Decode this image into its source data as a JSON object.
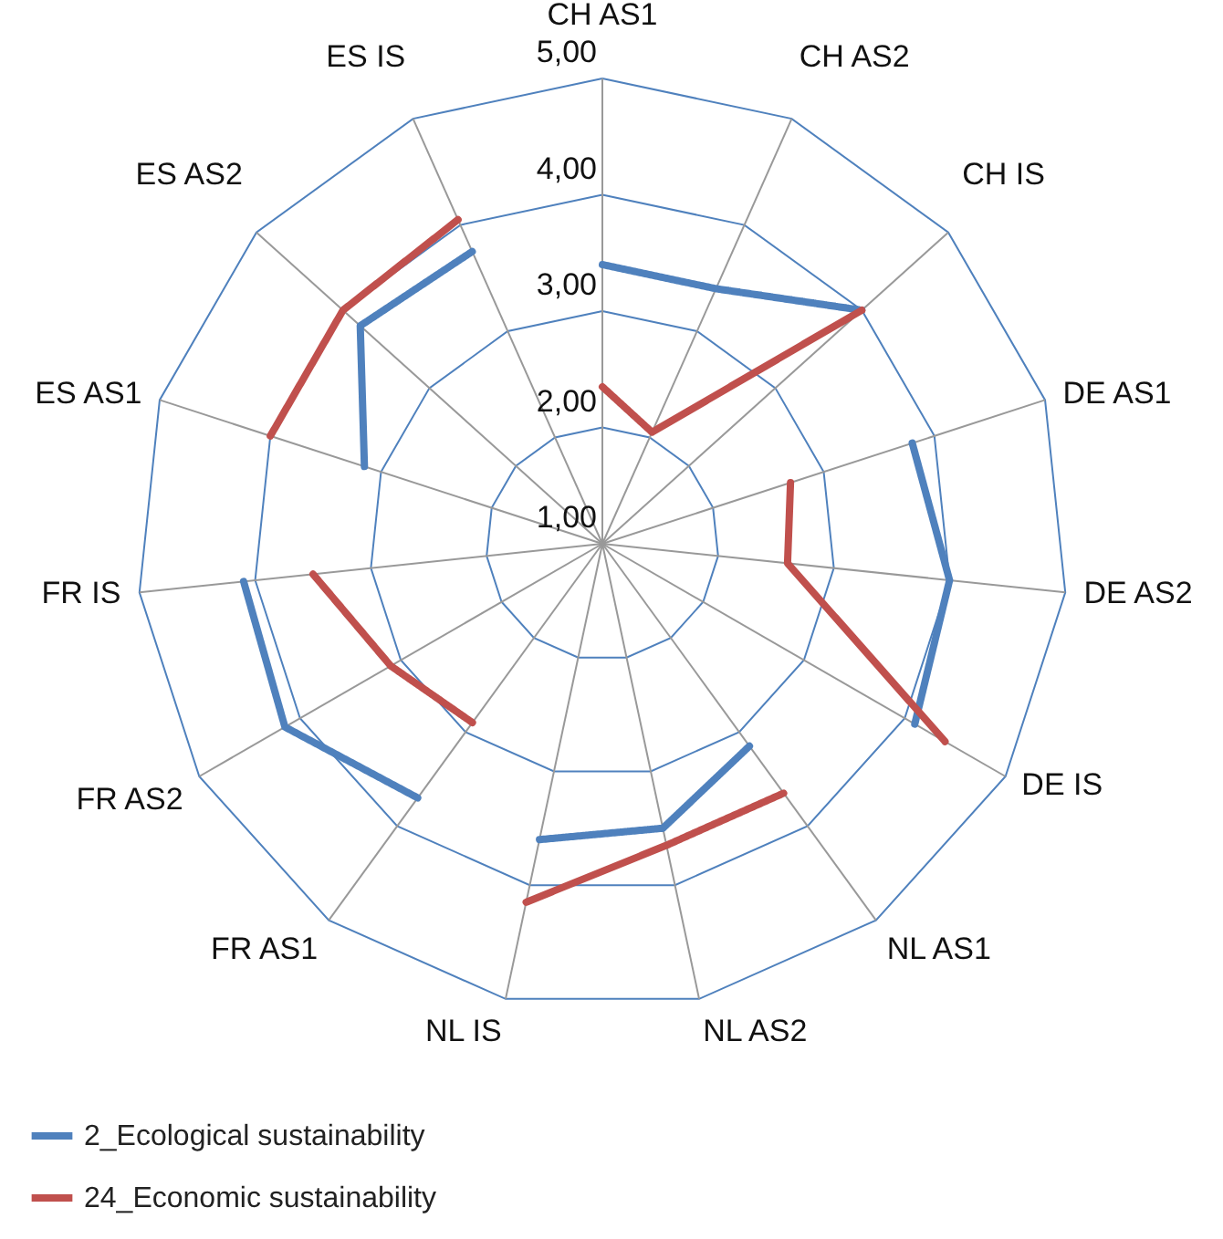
{
  "chart_data": {
    "type": "radar",
    "categories": [
      "CH AS1",
      "CH AS2",
      "CH IS",
      "DE AS1",
      "DE AS2",
      "DE IS",
      "NL AS1",
      "NL AS2",
      "NL IS",
      "FR AS1",
      "FR AS2",
      "FR IS",
      "ES AS1",
      "ES AS2",
      "ES IS"
    ],
    "ylim": [
      1,
      5
    ],
    "yticks": [
      {
        "value": 1,
        "label": "1,00"
      },
      {
        "value": 2,
        "label": "2,00"
      },
      {
        "value": 3,
        "label": "3,00"
      },
      {
        "value": 4,
        "label": "4,00"
      },
      {
        "value": 5,
        "label": "5,00"
      }
    ],
    "grid": true,
    "legend": "bottom left",
    "marker": "none",
    "line_style": "solid",
    "series": [
      {
        "name": "2_Ecological sustainability",
        "color": "#4f81bd",
        "values": [
          3.4,
          3.4,
          4.0,
          null,
          null,
          null,
          null,
          null,
          null,
          null,
          null,
          null,
          null,
          null,
          null
        ]
      },
      {
        "color": "#4f81bd",
        "values": [
          null,
          null,
          null,
          3.8,
          4.0,
          4.1,
          null,
          null,
          null,
          null,
          null,
          null,
          null,
          null,
          null
        ]
      },
      {
        "color": "#4f81bd",
        "values": [
          null,
          null,
          null,
          null,
          null,
          null,
          3.15,
          3.5,
          3.6,
          null,
          null,
          null,
          null,
          null,
          null
        ]
      },
      {
        "color": "#4f81bd",
        "values": [
          null,
          null,
          null,
          null,
          null,
          null,
          null,
          null,
          null,
          3.7,
          4.15,
          4.1,
          null,
          null,
          null
        ]
      },
      {
        "color": "#4f81bd",
        "values": [
          null,
          null,
          null,
          null,
          null,
          null,
          null,
          null,
          null,
          null,
          null,
          null,
          3.15,
          3.8,
          3.75
        ]
      },
      {
        "name": "24_Economic sustainability",
        "color": "#c0504d",
        "values": [
          2.35,
          2.05,
          4.0,
          null,
          null,
          null,
          null,
          null,
          null,
          null,
          null,
          null,
          null,
          null,
          null
        ]
      },
      {
        "color": "#c0504d",
        "values": [
          null,
          null,
          null,
          2.7,
          2.6,
          4.4,
          null,
          null,
          null,
          null,
          null,
          null,
          null,
          null,
          null
        ]
      },
      {
        "color": "#c0504d",
        "values": [
          null,
          null,
          null,
          null,
          null,
          null,
          3.65,
          3.65,
          4.15,
          null,
          null,
          null,
          null,
          null,
          null
        ]
      },
      {
        "color": "#c0504d",
        "values": [
          null,
          null,
          null,
          null,
          null,
          null,
          null,
          null,
          null,
          2.9,
          3.1,
          3.5,
          null,
          null,
          null
        ]
      },
      {
        "color": "#c0504d",
        "values": [
          null,
          null,
          null,
          null,
          null,
          null,
          null,
          null,
          null,
          null,
          null,
          null,
          4.0,
          4.0,
          4.05
        ]
      }
    ]
  }
}
